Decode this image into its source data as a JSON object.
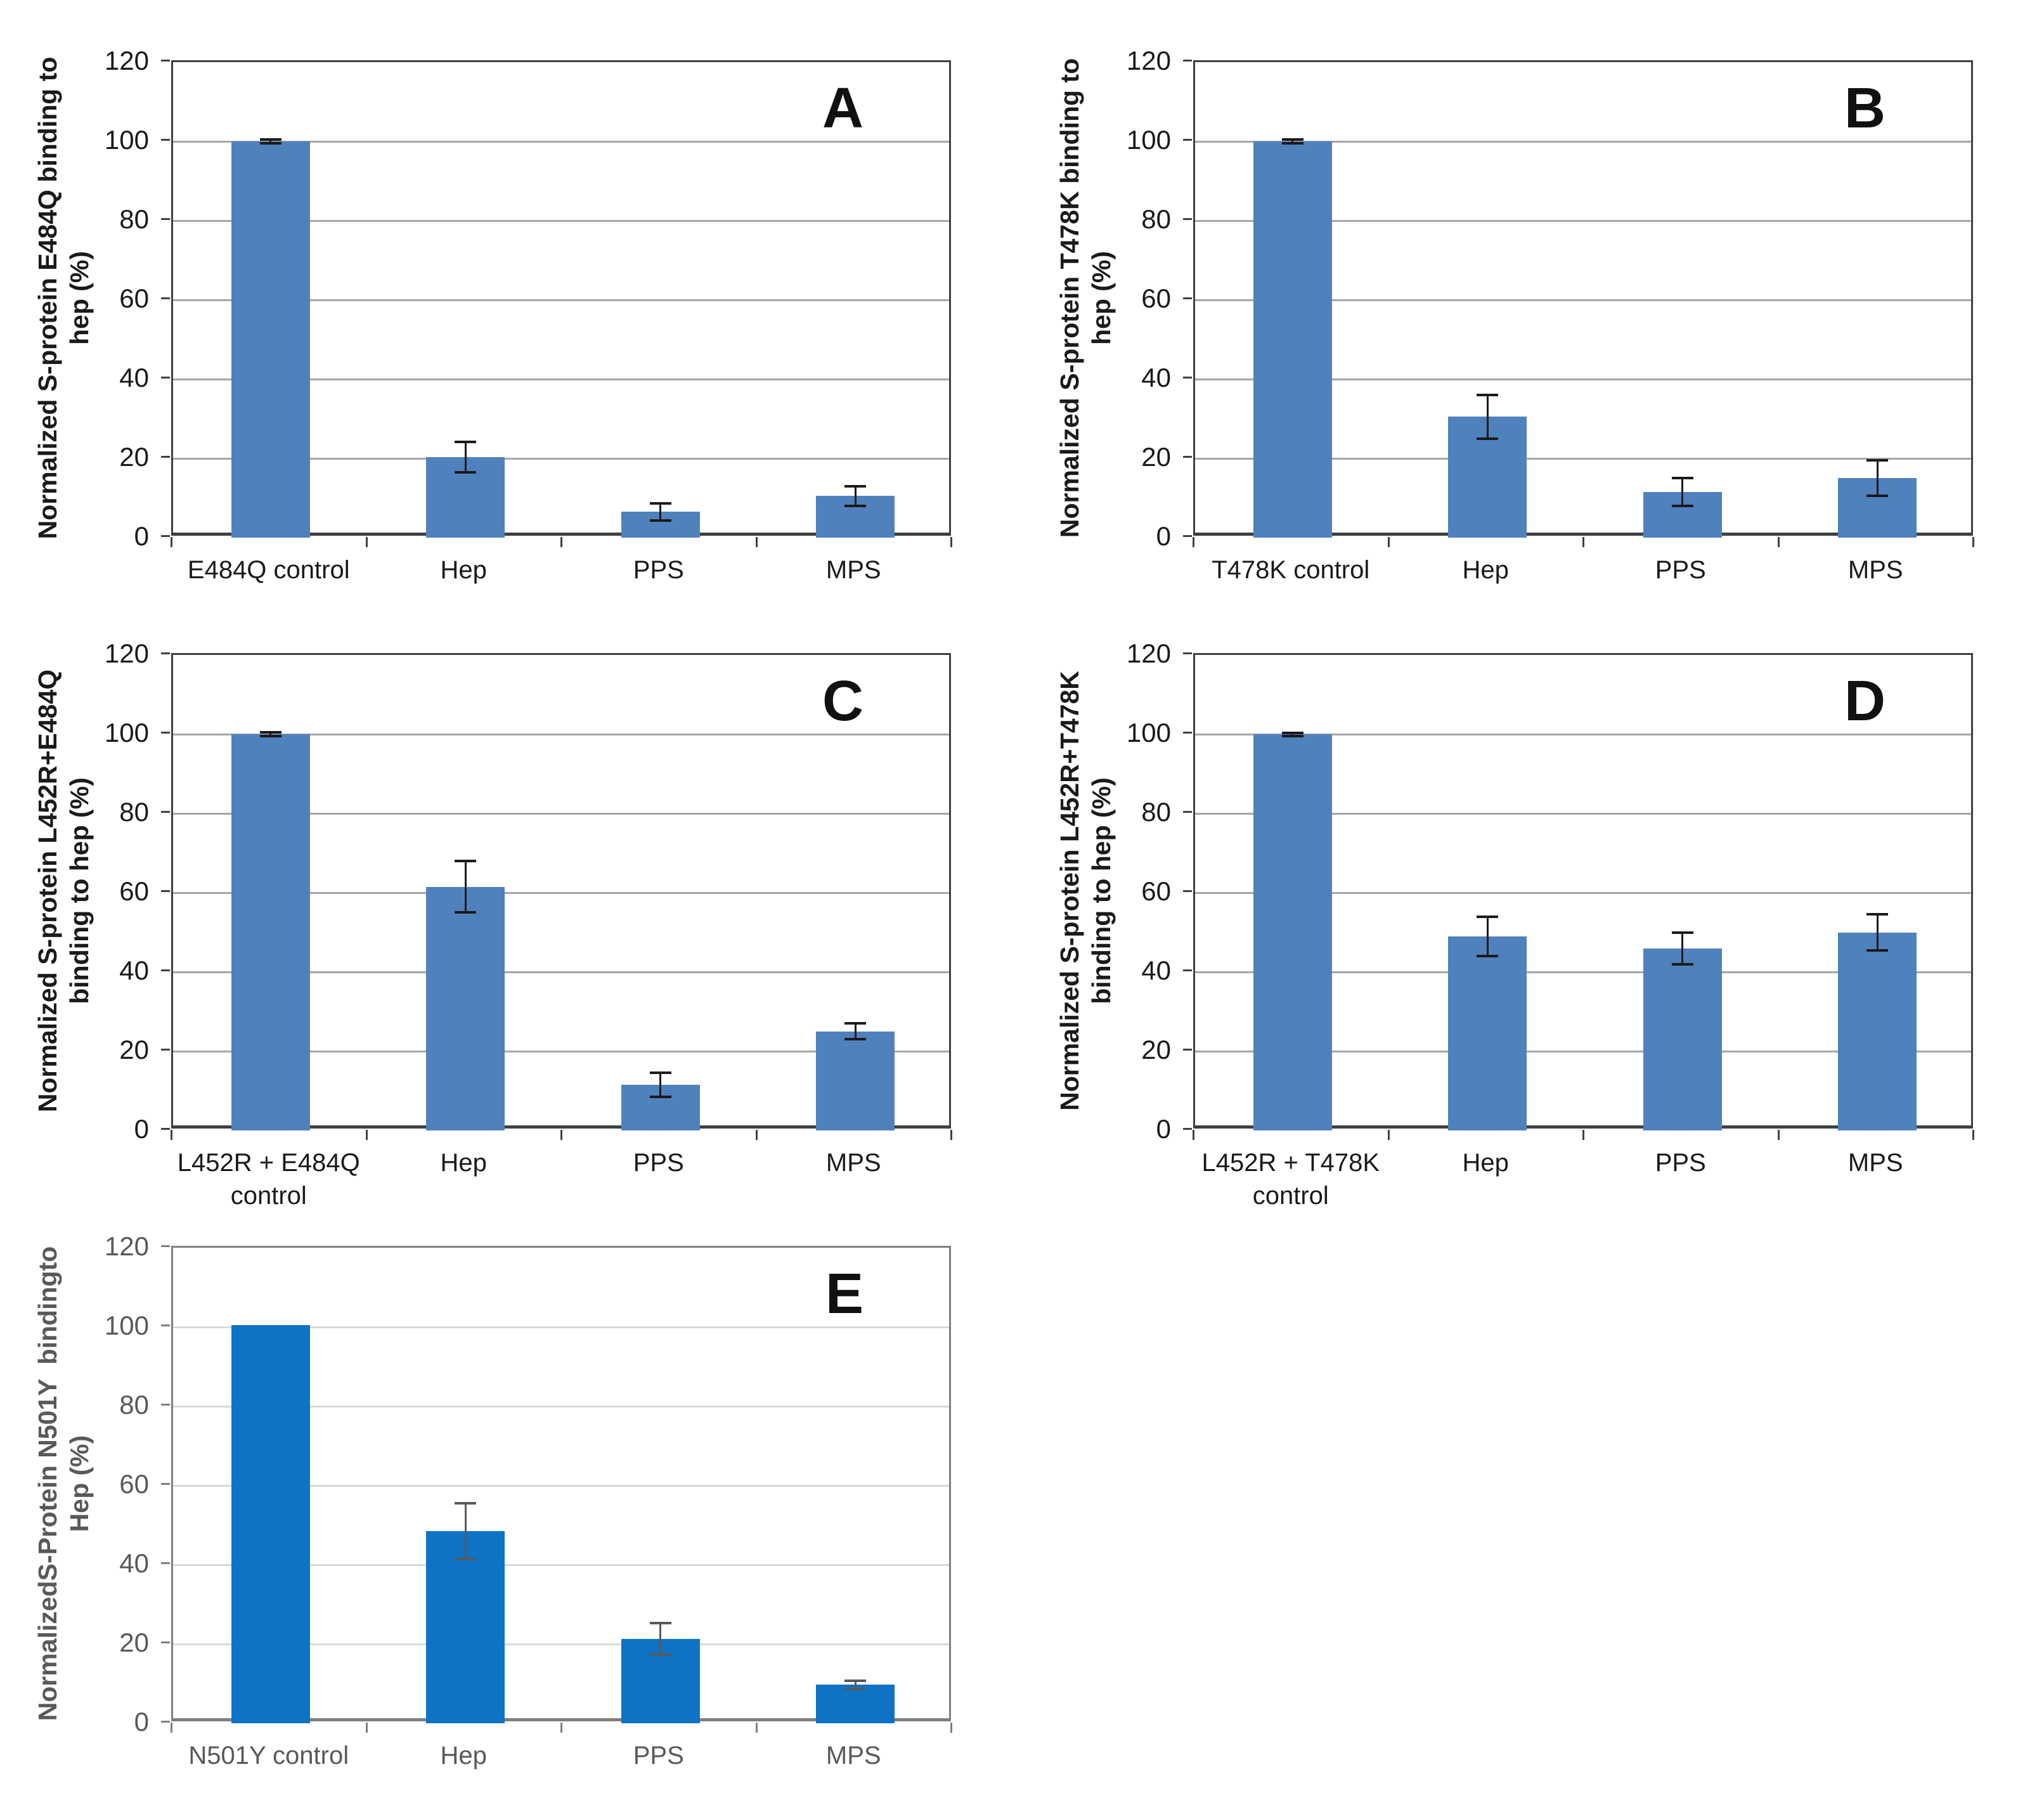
{
  "figure": {
    "background": "#ffffff",
    "description": "Five-panel bar chart figure (A-E) of normalized SARS-CoV-2 S-protein variant binding to heparin after competition with Hep, PPS, MPS"
  },
  "chart_data": [
    {
      "id": "A",
      "type": "bar",
      "panel_label": "A",
      "ylabel": "Normalized S-protein E484Q binding to hep (%)",
      "ylabel_lines": [
        "Normalized S-protein E484Q binding to",
        "hep (%)"
      ],
      "categories": [
        "E484Q control",
        "Hep",
        "PPS",
        "MPS"
      ],
      "values": [
        100,
        20.3,
        6.5,
        10.5
      ],
      "errors": [
        0.5,
        3.8,
        2.1,
        2.5
      ],
      "ylim": [
        0,
        120
      ],
      "yticks": [
        0,
        20,
        40,
        60,
        80,
        100,
        120
      ],
      "grid": true,
      "legend": "none",
      "bar_color": "#4f81bd",
      "error_color": "#1a1a1a",
      "text_color": "#1a1a1a",
      "letter_color": "#111111",
      "grid_color": "#a6a6a6",
      "border_color": "#404040"
    },
    {
      "id": "B",
      "type": "bar",
      "panel_label": "B",
      "ylabel": "Normalized S-protein T478K binding to hep (%)",
      "ylabel_lines": [
        "Normalized S-protein T478K binding to",
        "hep (%)"
      ],
      "categories": [
        "T478K control",
        "Hep",
        "PPS",
        "MPS"
      ],
      "values": [
        100,
        30.5,
        11.5,
        15
      ],
      "errors": [
        0.5,
        5.5,
        3.5,
        4.5
      ],
      "ylim": [
        0,
        120
      ],
      "yticks": [
        0,
        20,
        40,
        60,
        80,
        100,
        120
      ],
      "grid": true,
      "legend": "none",
      "bar_color": "#4f81bd",
      "error_color": "#1a1a1a",
      "text_color": "#1a1a1a",
      "letter_color": "#111111",
      "grid_color": "#a6a6a6",
      "border_color": "#404040"
    },
    {
      "id": "C",
      "type": "bar",
      "panel_label": "C",
      "ylabel": "Normalized S-protein L452R+E484Q binding to hep (%)",
      "ylabel_lines": [
        "Normalized S-protein L452R+E484Q",
        "binding to hep (%)"
      ],
      "categories": [
        "L452R + E484Q\ncontrol",
        "Hep",
        "PPS",
        "MPS"
      ],
      "values": [
        100,
        61.5,
        11.5,
        25
      ],
      "errors": [
        0.5,
        6.5,
        3,
        2
      ],
      "ylim": [
        0,
        120
      ],
      "yticks": [
        0,
        20,
        40,
        60,
        80,
        100,
        120
      ],
      "grid": true,
      "legend": "none",
      "bar_color": "#4f81bd",
      "error_color": "#1a1a1a",
      "text_color": "#1a1a1a",
      "letter_color": "#111111",
      "grid_color": "#a6a6a6",
      "border_color": "#404040"
    },
    {
      "id": "D",
      "type": "bar",
      "panel_label": "D",
      "ylabel": "Normalized S-protein L452R+T478K binding to hep (%)",
      "ylabel_lines": [
        "Normalized S-protein L452R+T478K",
        "binding to hep (%)"
      ],
      "categories": [
        "L452R + T478K\ncontrol",
        "Hep",
        "PPS",
        "MPS"
      ],
      "values": [
        100,
        49,
        46,
        50
      ],
      "errors": [
        0.4,
        5,
        4,
        4.5
      ],
      "ylim": [
        0,
        120
      ],
      "yticks": [
        0,
        20,
        40,
        60,
        80,
        100,
        120
      ],
      "grid": true,
      "legend": "none",
      "bar_color": "#4f81bd",
      "error_color": "#1a1a1a",
      "text_color": "#1a1a1a",
      "letter_color": "#111111",
      "grid_color": "#a6a6a6",
      "border_color": "#404040"
    },
    {
      "id": "E",
      "type": "bar",
      "panel_label": "E",
      "ylabel": "NormalizedS-Protein N501Y  bindingto Hep (%)",
      "ylabel_lines": [
        "NormalizedS-Protein N501Y  bindingto",
        "Hep (%)"
      ],
      "categories": [
        "N501Y control",
        "Hep",
        "PPS",
        "MPS"
      ],
      "values": [
        100.5,
        48.5,
        21.3,
        9.7
      ],
      "errors": [
        0,
        7,
        4,
        1
      ],
      "ylim": [
        0,
        120
      ],
      "yticks": [
        0,
        20,
        40,
        60,
        80,
        100,
        120
      ],
      "grid": true,
      "legend": "none",
      "bar_color": "#0e73c4",
      "error_color": "#595959",
      "text_color": "#595959",
      "letter_color": "#111111",
      "grid_color": "#d9d9d9",
      "border_color": "#7f7f7f"
    }
  ]
}
